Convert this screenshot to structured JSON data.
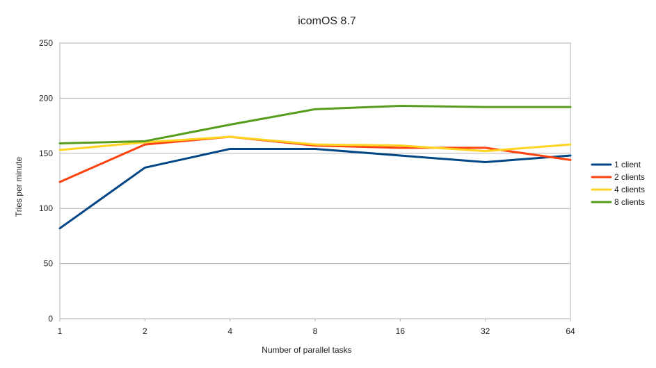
{
  "chart_data": {
    "type": "line",
    "title": "icomOS 8.7",
    "xlabel": "Number of parallel tasks",
    "ylabel": "Tries per minute",
    "categories": [
      "1",
      "2",
      "4",
      "8",
      "16",
      "32",
      "64"
    ],
    "ylim": [
      0,
      250
    ],
    "yticks": [
      0,
      50,
      100,
      150,
      200,
      250
    ],
    "grid": true,
    "legend": "right",
    "series": [
      {
        "name": "1 client",
        "color": "#004586",
        "values": [
          82,
          137,
          154,
          154,
          148,
          142,
          148
        ]
      },
      {
        "name": "2 clients",
        "color": "#ff420e",
        "values": [
          124,
          158,
          165,
          157,
          155,
          155,
          144
        ]
      },
      {
        "name": "4 clients",
        "color": "#ffd320",
        "values": [
          153,
          160,
          165,
          158,
          157,
          152,
          158
        ]
      },
      {
        "name": "8 clients",
        "color": "#579d1c",
        "values": [
          159,
          161,
          176,
          190,
          193,
          192,
          192
        ]
      }
    ]
  }
}
